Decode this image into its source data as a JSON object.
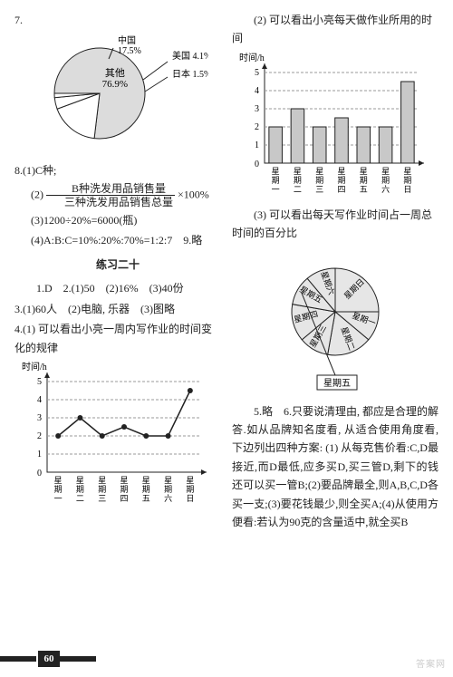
{
  "left": {
    "q7_label": "7.",
    "pie1": {
      "type": "pie",
      "slices": [
        {
          "label": "其他",
          "value": 76.9,
          "color": "#dcdcdc",
          "label_text": "其他\n76.9%"
        },
        {
          "label": "中国",
          "value": 17.5,
          "color": "#ffffff",
          "label_text": "中国\n17.5%"
        },
        {
          "label": "美国",
          "value": 4.1,
          "color": "#ffffff",
          "label_text": "美国 4.1%"
        },
        {
          "label": "日本",
          "value": 1.5,
          "color": "#ffffff",
          "label_text": "日本 1.5%"
        }
      ],
      "stroke": "#222222"
    },
    "q8_1": "8.(1)C种;",
    "q8_2_prefix": "(2)",
    "q8_2_num": "B种洗发用品销售量",
    "q8_2_den": "三种洗发用品销售总量",
    "q8_2_suffix": "×100%",
    "q8_3": "(3)1200÷20%=6000(瓶)",
    "q8_4": "(4)A:B:C=10%:20%:70%=1:2:7　9.略",
    "ex_title": "练习二十",
    "line1": "1.D　2.(1)50　(2)16%　(3)40份",
    "line2": "3.(1)60人　(2)电脑, 乐器　(3)图略",
    "line3": "4.(1) 可以看出小亮一周内写作业的时间变化的规律",
    "linechart": {
      "type": "line",
      "ylabel": "时间/h",
      "categories": [
        "星\n期\n一",
        "星\n期\n二",
        "星\n期\n三",
        "星\n期\n四",
        "星\n期\n五",
        "星\n期\n六",
        "星\n期\n日"
      ],
      "values": [
        2,
        3,
        2,
        2.5,
        2,
        2,
        4.5
      ],
      "ylim": [
        0,
        5
      ],
      "yticks": [
        1,
        2,
        3,
        4,
        5
      ],
      "line_color": "#222222",
      "marker": "circle",
      "grid_color": "#999999",
      "arrow": true
    }
  },
  "right": {
    "r1": "(2) 可以看出小亮每天做作业所用的时间",
    "barchart": {
      "type": "bar",
      "ylabel": "时间/h",
      "categories": [
        "星\n期\n一",
        "星\n期\n二",
        "星\n期\n三",
        "星\n期\n四",
        "星\n期\n五",
        "星\n期\n六",
        "星\n期\n日"
      ],
      "values": [
        2,
        3,
        2,
        2.5,
        2,
        2,
        4.5
      ],
      "ylim": [
        0,
        5
      ],
      "yticks": [
        1,
        2,
        3,
        4,
        5
      ],
      "bar_color": "#c8c8c8",
      "bar_border": "#222222",
      "grid_color": "#999999",
      "arrow": true
    },
    "r2": "(3) 可以看出每天写作业时间占一周总时间的百分比",
    "pie2": {
      "type": "pie",
      "slices": [
        {
          "label": "星期日",
          "value": 4.5
        },
        {
          "label": "星期一",
          "value": 2
        },
        {
          "label": "星期二",
          "value": 3
        },
        {
          "label": "星期三",
          "value": 2
        },
        {
          "label": "星期四",
          "value": 2.5
        },
        {
          "label": "星期五",
          "value": 2
        },
        {
          "label": "星期六",
          "value": 2
        }
      ],
      "stroke": "#222222",
      "fill": "#e6e6e6",
      "callout_box": "星期五"
    },
    "r3": "5.略　6.只要说清理由, 都应是合理的解答.如从品牌知名度看, 从适合使用角度看, 下边列出四种方案: (1) 从每克售价看:C,D最接近,而D最低,应多买D,买三管D,剩下的钱还可以买一管B;(2)要品牌最全,则A,B,C,D各买一支;(3)要花钱最少,则全买A;(4)从使用方便看:若认为90克的含量适中,就全买B"
  },
  "page_number": "60",
  "watermark": "答案网"
}
